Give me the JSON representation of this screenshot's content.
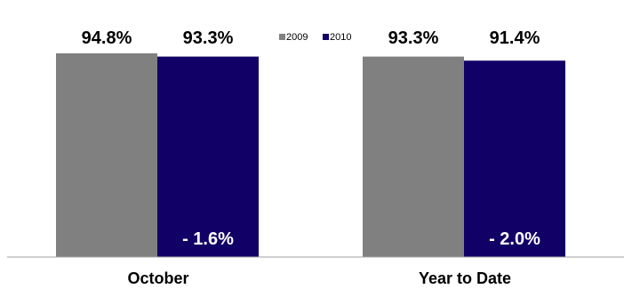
{
  "chart_data": {
    "type": "bar",
    "categories": [
      "October",
      "Year to Date"
    ],
    "series": [
      {
        "name": "2009",
        "values": [
          94.8,
          93.3
        ],
        "labels": [
          "94.8%",
          "93.3%"
        ],
        "color": "#808080"
      },
      {
        "name": "2010",
        "values": [
          93.3,
          91.4
        ],
        "labels": [
          "93.3%",
          "91.4%"
        ],
        "color": "#110066"
      }
    ],
    "change_labels": [
      "- 1.6%",
      "- 2.0%"
    ],
    "ylim": [
      0,
      100
    ],
    "grid": false,
    "legend": "top-center",
    "xlabel": "",
    "ylabel": ""
  }
}
